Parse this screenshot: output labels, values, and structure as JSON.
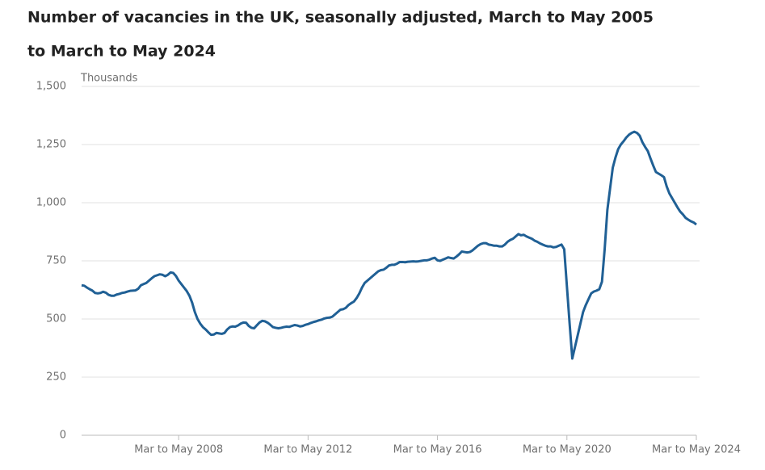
{
  "chart_data": {
    "type": "line",
    "title": [
      "Number of vacancies in the UK, seasonally adjusted, March to May 2005",
      "to March to May 2024"
    ],
    "y_label": "Thousands",
    "categories": [
      null,
      null,
      null,
      null,
      null,
      null,
      null,
      null,
      null,
      null,
      null,
      null,
      null,
      null,
      null,
      null,
      null,
      null,
      null,
      null,
      null,
      null,
      null,
      null,
      null,
      null,
      null,
      null,
      null,
      null,
      null,
      null,
      null,
      null,
      null,
      null,
      "Mar to May 2008",
      null,
      null,
      null,
      null,
      null,
      null,
      null,
      null,
      null,
      null,
      null,
      null,
      null,
      null,
      null,
      null,
      null,
      null,
      null,
      null,
      null,
      null,
      null,
      null,
      null,
      null,
      null,
      null,
      null,
      null,
      null,
      null,
      null,
      null,
      null,
      null,
      null,
      null,
      null,
      null,
      null,
      null,
      null,
      null,
      null,
      null,
      null,
      "Mar to May 2012",
      null,
      null,
      null,
      null,
      null,
      null,
      null,
      null,
      null,
      null,
      null,
      null,
      null,
      null,
      null,
      null,
      null,
      null,
      null,
      null,
      null,
      null,
      null,
      null,
      null,
      null,
      null,
      null,
      null,
      null,
      null,
      null,
      null,
      null,
      null,
      null,
      null,
      null,
      null,
      null,
      null,
      null,
      null,
      null,
      null,
      null,
      null,
      "Mar to May 2016",
      null,
      null,
      null,
      null,
      null,
      null,
      null,
      null,
      null,
      null,
      null,
      null,
      null,
      null,
      null,
      null,
      null,
      null,
      null,
      null,
      null,
      null,
      null,
      null,
      null,
      null,
      null,
      null,
      null,
      null,
      null,
      null,
      null,
      null,
      null,
      null,
      null,
      null,
      null,
      null,
      null,
      null,
      null,
      null,
      null,
      null,
      null,
      "Mar to May 2020",
      null,
      null,
      null,
      null,
      null,
      null,
      null,
      null,
      null,
      null,
      null,
      null,
      null,
      null,
      null,
      null,
      null,
      null,
      null,
      null,
      null,
      null,
      null,
      null,
      null,
      null,
      null,
      null,
      null,
      null,
      null,
      null,
      null,
      null,
      null,
      null,
      null,
      null,
      null,
      null,
      null,
      null,
      null,
      null,
      null,
      null,
      null,
      "Mar to May 2024"
    ],
    "series": [
      {
        "name": "Vacancies",
        "color": "#206095",
        "values": [
          645,
          643,
          635,
          628,
          622,
          612,
          610,
          612,
          617,
          613,
          604,
          600,
          600,
          605,
          608,
          612,
          614,
          618,
          621,
          622,
          623,
          630,
          645,
          650,
          655,
          665,
          675,
          684,
          688,
          692,
          690,
          684,
          690,
          700,
          698,
          685,
          665,
          650,
          635,
          620,
          600,
          570,
          530,
          500,
          480,
          465,
          455,
          443,
          432,
          433,
          440,
          438,
          436,
          440,
          455,
          465,
          468,
          467,
          472,
          480,
          485,
          484,
          470,
          462,
          460,
          473,
          485,
          492,
          490,
          484,
          475,
          465,
          462,
          460,
          462,
          465,
          467,
          466,
          470,
          474,
          472,
          468,
          470,
          475,
          478,
          483,
          487,
          490,
          494,
          497,
          502,
          505,
          506,
          510,
          520,
          530,
          540,
          542,
          548,
          560,
          568,
          575,
          590,
          610,
          635,
          655,
          665,
          675,
          685,
          695,
          705,
          710,
          712,
          720,
          730,
          733,
          733,
          738,
          745,
          745,
          744,
          746,
          747,
          748,
          747,
          748,
          750,
          752,
          752,
          755,
          760,
          763,
          752,
          750,
          755,
          760,
          765,
          762,
          760,
          768,
          778,
          790,
          788,
          786,
          788,
          795,
          805,
          815,
          822,
          826,
          826,
          820,
          818,
          815,
          815,
          812,
          812,
          820,
          832,
          840,
          845,
          855,
          865,
          860,
          862,
          855,
          850,
          845,
          837,
          832,
          825,
          820,
          815,
          812,
          812,
          808,
          810,
          815,
          820,
          800,
          640,
          480,
          330,
          380,
          430,
          480,
          530,
          560,
          585,
          610,
          618,
          622,
          628,
          660,
          800,
          969,
          1060,
          1150,
          1194,
          1230,
          1250,
          1264,
          1280,
          1292,
          1300,
          1305,
          1300,
          1288,
          1260,
          1240,
          1222,
          1190,
          1160,
          1132,
          1125,
          1118,
          1110,
          1070,
          1040,
          1020,
          1000,
          980,
          962,
          950,
          935,
          927,
          920,
          915,
          906
        ]
      }
    ],
    "ylim": [
      0,
      1500
    ],
    "yticks": [
      0,
      250,
      500,
      750,
      {
        "value": 1000,
        "label": "1,000"
      },
      {
        "value": 1250,
        "label": "1,250"
      },
      {
        "value": 1500,
        "label": "1,500"
      }
    ],
    "grid": true
  }
}
